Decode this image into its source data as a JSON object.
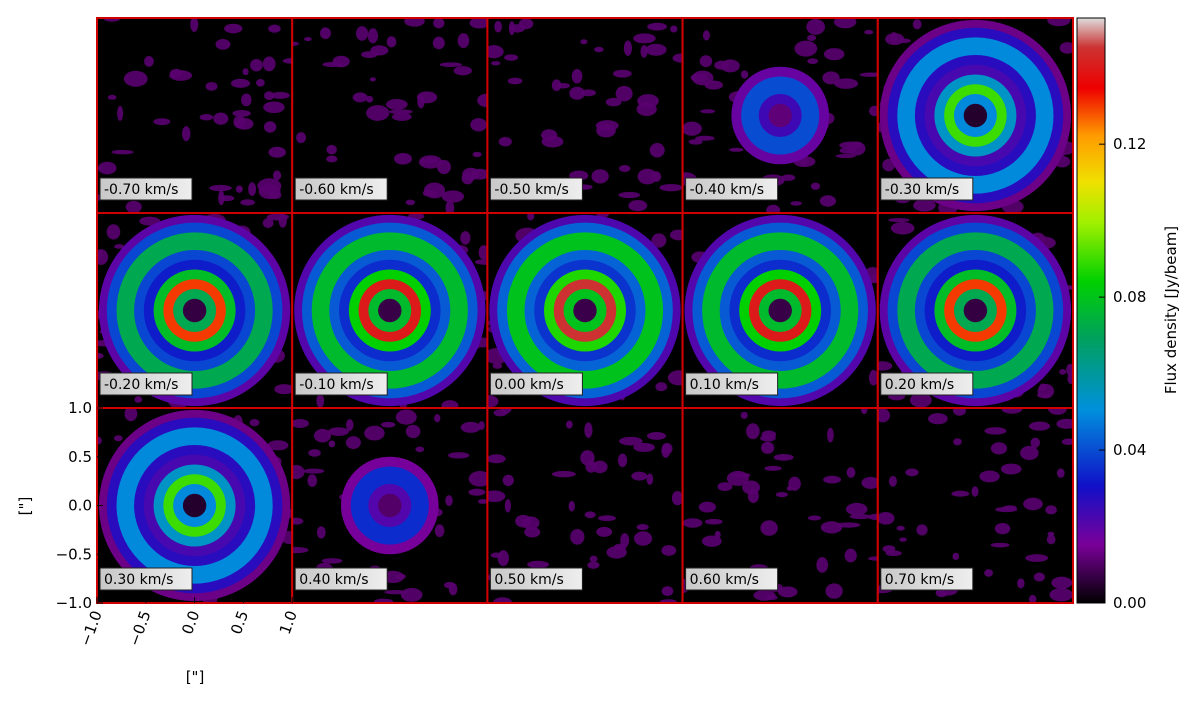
{
  "chart_data": {
    "type": "channel-map",
    "xlabel": "[\"]",
    "ylabel": "[\"]",
    "xlim": [
      -1,
      1
    ],
    "ylim": [
      -1,
      1
    ],
    "xticks": [
      {
        "value": -1,
        "label": "−1.0"
      },
      {
        "value": -0.5,
        "label": "−0.5"
      },
      {
        "value": 0,
        "label": "0.0"
      },
      {
        "value": 0.5,
        "label": "0.5"
      },
      {
        "value": 1,
        "label": "1.0"
      }
    ],
    "yticks": [
      {
        "value": -1,
        "label": "−1.0"
      },
      {
        "value": -0.5,
        "label": "−0.5"
      },
      {
        "value": 0,
        "label": "0.0"
      },
      {
        "value": 0.5,
        "label": "0.5"
      },
      {
        "value": 1,
        "label": "1.0"
      }
    ],
    "channels": [
      {
        "label": "-0.70 km/s",
        "peak": 0.01
      },
      {
        "label": "-0.60 km/s",
        "peak": 0.01
      },
      {
        "label": "-0.50 km/s",
        "peak": 0.012
      },
      {
        "label": "-0.40 km/s",
        "peak": 0.04
      },
      {
        "label": "-0.30 km/s",
        "peak": 0.09
      },
      {
        "label": "-0.20 km/s",
        "peak": 0.13
      },
      {
        "label": "-0.10 km/s",
        "peak": 0.14
      },
      {
        "label": "0.00 km/s",
        "peak": 0.145
      },
      {
        "label": "0.10 km/s",
        "peak": 0.14
      },
      {
        "label": "0.20 km/s",
        "peak": 0.13
      },
      {
        "label": "0.30 km/s",
        "peak": 0.09
      },
      {
        "label": "0.40 km/s",
        "peak": 0.035
      },
      {
        "label": "0.50 km/s",
        "peak": 0.01
      },
      {
        "label": "0.60 km/s",
        "peak": 0.01
      },
      {
        "label": "0.70 km/s",
        "peak": 0.01
      }
    ],
    "colorbar": {
      "label": "Flux density [Jy/beam]",
      "lim": [
        0,
        0.153
      ],
      "ticks": [
        {
          "value": 0,
          "label": "0.00"
        },
        {
          "value": 0.04,
          "label": "0.04"
        },
        {
          "value": 0.08,
          "label": "0.08"
        },
        {
          "value": 0.12,
          "label": "0.12"
        }
      ]
    }
  }
}
